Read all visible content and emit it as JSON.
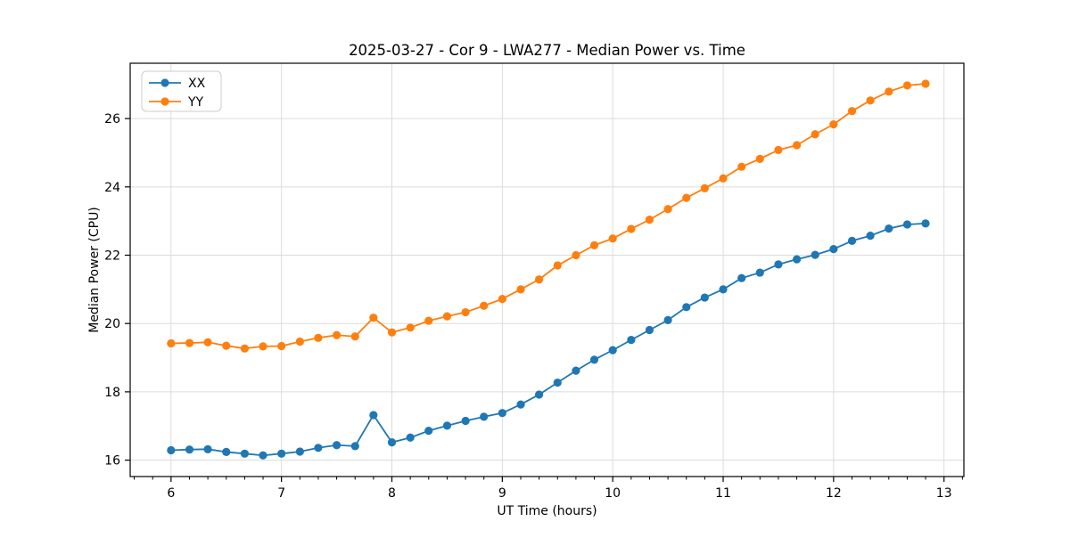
{
  "figure": {
    "title": "2025-03-27 - Cor 9 - LWA277 - Median Power vs. Time"
  },
  "chart_data": {
    "type": "line",
    "title": "2025-03-27 - Cor 9 - LWA277 - Median Power vs. Time",
    "xlabel": "UT Time (hours)",
    "ylabel": "Median Power (CPU)",
    "grid": true,
    "legend_position": "upper left",
    "marker": "circle",
    "xlim": [
      5.63,
      13.18
    ],
    "ylim": [
      15.52,
      27.62
    ],
    "x_ticks": [
      6,
      7,
      8,
      9,
      10,
      11,
      12,
      13
    ],
    "y_ticks": [
      16,
      18,
      20,
      22,
      24,
      26
    ],
    "x_minor_tick_step_hours": 0.1667,
    "x": [
      6.0,
      6.167,
      6.333,
      6.5,
      6.667,
      6.833,
      7.0,
      7.167,
      7.333,
      7.5,
      7.667,
      7.833,
      8.0,
      8.167,
      8.333,
      8.5,
      8.667,
      8.833,
      9.0,
      9.167,
      9.333,
      9.5,
      9.667,
      9.833,
      10.0,
      10.167,
      10.333,
      10.5,
      10.667,
      10.833,
      11.0,
      11.167,
      11.333,
      11.5,
      11.667,
      11.833,
      12.0,
      12.167,
      12.333,
      12.5,
      12.667,
      12.833
    ],
    "series": [
      {
        "name": "XX",
        "color": "#1f77b4",
        "values": [
          16.29,
          16.31,
          16.32,
          16.24,
          16.19,
          16.14,
          16.19,
          16.25,
          16.36,
          16.44,
          16.41,
          17.32,
          16.52,
          16.66,
          16.86,
          17.01,
          17.15,
          17.27,
          17.38,
          17.63,
          17.92,
          18.27,
          18.62,
          18.94,
          19.22,
          19.52,
          19.81,
          20.1,
          20.48,
          20.76,
          21.0,
          21.33,
          21.49,
          21.73,
          21.88,
          22.01,
          22.18,
          22.42,
          22.57,
          22.78,
          22.9,
          22.93
        ]
      },
      {
        "name": "YY",
        "color": "#ff7f0e",
        "values": [
          19.42,
          19.43,
          19.45,
          19.35,
          19.27,
          19.33,
          19.34,
          19.47,
          19.58,
          19.66,
          19.62,
          20.17,
          19.74,
          19.88,
          20.08,
          20.21,
          20.33,
          20.52,
          20.72,
          21.0,
          21.29,
          21.7,
          22.0,
          22.29,
          22.49,
          22.77,
          23.04,
          23.35,
          23.68,
          23.96,
          24.25,
          24.59,
          24.82,
          25.08,
          25.22,
          25.54,
          25.83,
          26.22,
          26.53,
          26.79,
          26.97,
          27.02
        ]
      }
    ],
    "colors": {
      "background": "#ffffff",
      "grid": "#dcdcdc",
      "spine": "#000000",
      "text": "#000000"
    }
  }
}
